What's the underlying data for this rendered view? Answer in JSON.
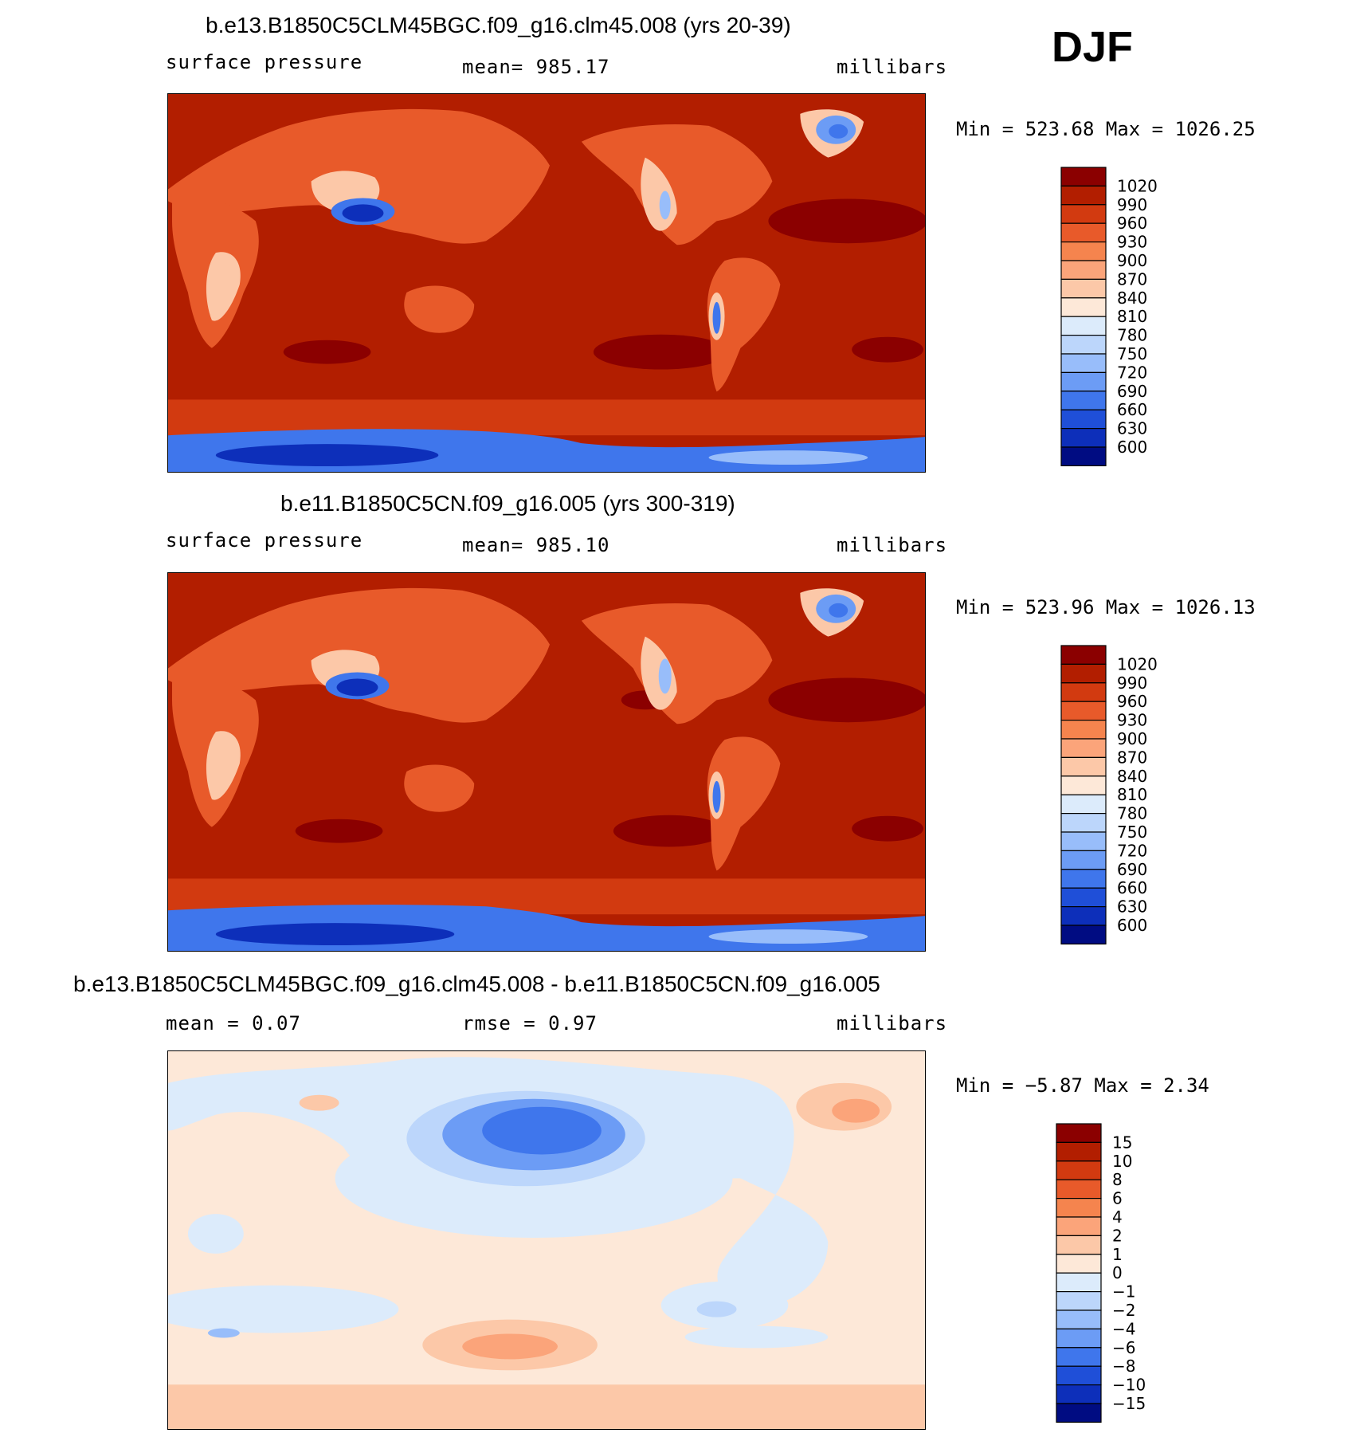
{
  "season": "DJF",
  "panels": [
    {
      "title": "b.e13.B1850C5CLM45BGC.f09_g16.clm45.008 (yrs 20-39)",
      "left_label": "surface pressure",
      "center_label": "mean=  985.17",
      "units": "millibars",
      "minmax": "Min = 523.68 Max = 1026.25",
      "colorbar": {
        "labels": [
          "1020",
          "990",
          "960",
          "930",
          "900",
          "870",
          "840",
          "810",
          "780",
          "750",
          "720",
          "690",
          "660",
          "630",
          "600"
        ],
        "colors": [
          "#8b0000",
          "#b21e00",
          "#d23a10",
          "#e85a2a",
          "#f5844e",
          "#fba47a",
          "#fcc8a8",
          "#fde8d8",
          "#dcebfb",
          "#bcd6fb",
          "#98bdfa",
          "#6c9cf5",
          "#3f76ec",
          "#1f4fd8",
          "#0d2fba",
          "#000c82"
        ]
      }
    },
    {
      "title": "b.e11.B1850C5CN.f09_g16.005 (yrs 300-319)",
      "left_label": "surface pressure",
      "center_label": "mean=  985.10",
      "units": "millibars",
      "minmax": "Min = 523.96 Max = 1026.13",
      "colorbar": {
        "labels": [
          "1020",
          "990",
          "960",
          "930",
          "900",
          "870",
          "840",
          "810",
          "780",
          "750",
          "720",
          "690",
          "660",
          "630",
          "600"
        ],
        "colors": [
          "#8b0000",
          "#b21e00",
          "#d23a10",
          "#e85a2a",
          "#f5844e",
          "#fba47a",
          "#fcc8a8",
          "#fde8d8",
          "#dcebfb",
          "#bcd6fb",
          "#98bdfa",
          "#6c9cf5",
          "#3f76ec",
          "#1f4fd8",
          "#0d2fba",
          "#000c82"
        ]
      }
    },
    {
      "title": "b.e13.B1850C5CLM45BGC.f09_g16.clm45.008 - b.e11.B1850C5CN.f09_g16.005",
      "left_label": "mean =    0.07",
      "center_label": "rmse =    0.97",
      "units": "millibars",
      "minmax": "Min =  −5.87 Max =    2.34",
      "colorbar": {
        "labels": [
          "15",
          "10",
          "8",
          "6",
          "4",
          "2",
          "1",
          "0",
          "−1",
          "−2",
          "−4",
          "−6",
          "−8",
          "−10",
          "−15"
        ],
        "colors": [
          "#8b0000",
          "#b21e00",
          "#d23a10",
          "#e85a2a",
          "#f5844e",
          "#fba47a",
          "#fcc8a8",
          "#fde8d8",
          "#dcebfb",
          "#bcd6fb",
          "#98bdfa",
          "#6c9cf5",
          "#3f76ec",
          "#1f4fd8",
          "#0d2fba",
          "#000c82"
        ]
      }
    }
  ],
  "colors": {
    "ocean": "#b21e00",
    "ocean_high": "#8b0000",
    "land_mid": "#e85a2a",
    "land_light": "#fcc8a8",
    "ice_blue": "#3f76ec",
    "ice_dark": "#0d2fba",
    "diff_background": "#fde8d8",
    "diff_light_blue": "#dcebfb",
    "diff_blue": "#6c9cf5",
    "diff_dark_blue": "#3f76ec",
    "diff_salmon": "#fcc8a8",
    "diff_orange": "#fba47a"
  }
}
